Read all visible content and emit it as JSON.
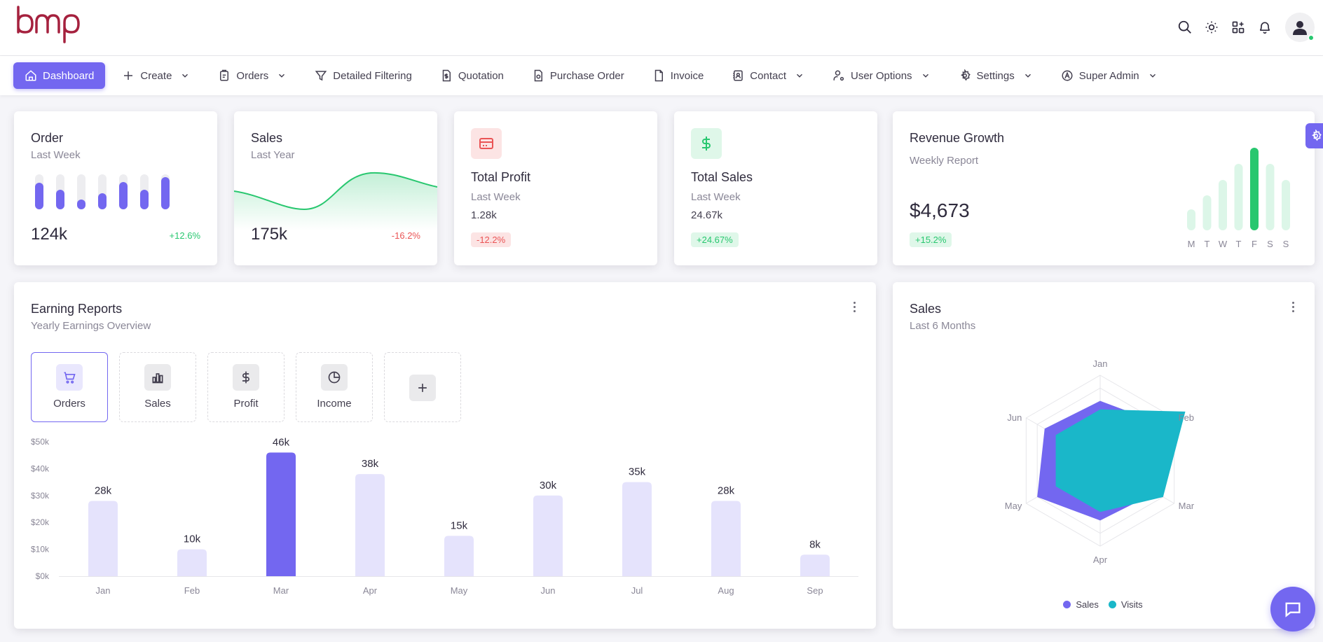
{
  "brand": {
    "logo_text": "bmp",
    "logo_color": "#a5213e"
  },
  "colors": {
    "primary": "#7367f0",
    "success": "#28c76f",
    "danger": "#ea5455",
    "visits": "#1ab7c9",
    "bar_light": "#e5e3fc"
  },
  "top_icons": [
    "search-icon",
    "sun-icon",
    "apps-icon",
    "bell-icon",
    "user-avatar-icon"
  ],
  "nav": [
    {
      "label": "Dashboard",
      "icon": "home-icon",
      "dropdown": false,
      "active": true
    },
    {
      "label": "Create",
      "icon": "plus-icon",
      "dropdown": true
    },
    {
      "label": "Orders",
      "icon": "clipboard-icon",
      "dropdown": true
    },
    {
      "label": "Detailed Filtering",
      "icon": "filter-icon",
      "dropdown": false
    },
    {
      "label": "Quotation",
      "icon": "dollar-file-icon",
      "dropdown": false
    },
    {
      "label": "Purchase Order",
      "icon": "file-settings-icon",
      "dropdown": false
    },
    {
      "label": "Invoice",
      "icon": "file-icon",
      "dropdown": false
    },
    {
      "label": "Contact",
      "icon": "address-book-icon",
      "dropdown": true
    },
    {
      "label": "User Options",
      "icon": "user-cog-icon",
      "dropdown": true
    },
    {
      "label": "Settings",
      "icon": "gear-icon",
      "dropdown": true
    },
    {
      "label": "Super Admin",
      "icon": "admin-circle-icon",
      "dropdown": true
    }
  ],
  "order_card": {
    "title": "Order",
    "subtitle": "Last Week",
    "value": "124k",
    "change": "+12.6%",
    "bar_levels": [
      0.75,
      0.55,
      0.28,
      0.45,
      0.78,
      0.55,
      0.92
    ]
  },
  "sales_card": {
    "title": "Sales",
    "subtitle": "Last Year",
    "value": "175k",
    "change": "-16.2%"
  },
  "profit_card": {
    "title": "Total Profit",
    "subtitle": "Last Week",
    "value": "1.28k",
    "change": "-12.2%",
    "icon": "credit-card-icon"
  },
  "total_sales_card": {
    "title": "Total Sales",
    "subtitle": "Last Week",
    "value": "24.67k",
    "change": "+24.67%",
    "icon": "dollar-icon"
  },
  "revenue_card": {
    "title": "Revenue Growth",
    "subtitle": "Weekly Report",
    "value": "$4,673",
    "change": "+15.2%",
    "days": [
      "M",
      "T",
      "W",
      "T",
      "F",
      "S",
      "S"
    ],
    "levels": [
      0.3,
      0.5,
      0.72,
      0.95,
      1.18,
      0.95,
      0.72
    ],
    "highlight_index": 4
  },
  "earning_reports": {
    "title": "Earning Reports",
    "subtitle": "Yearly Earnings Overview",
    "tiles": [
      {
        "label": "Orders",
        "icon": "cart-icon",
        "selected": true
      },
      {
        "label": "Sales",
        "icon": "bar-chart-icon",
        "selected": false
      },
      {
        "label": "Profit",
        "icon": "dollar-icon",
        "selected": false
      },
      {
        "label": "Income",
        "icon": "pie-chart-icon",
        "selected": false
      }
    ],
    "add_icon": "plus-icon"
  },
  "sales_radar": {
    "title": "Sales",
    "subtitle": "Last 6 Months",
    "legend": [
      {
        "label": "Sales",
        "color": "#7367f0"
      },
      {
        "label": "Visits",
        "color": "#1ab7c9"
      }
    ]
  },
  "chart_data": [
    {
      "type": "bar",
      "categories": [
        "Jan",
        "Feb",
        "Mar",
        "Apr",
        "May",
        "Jun",
        "Jul",
        "Aug",
        "Sep"
      ],
      "values": [
        28,
        10,
        46,
        38,
        15,
        30,
        35,
        28,
        8
      ],
      "value_labels": [
        "28k",
        "10k",
        "46k",
        "38k",
        "15k",
        "30k",
        "35k",
        "28k",
        "8k"
      ],
      "highlight_index": 2,
      "y_ticks": [
        "$0k",
        "$10k",
        "$20k",
        "$30k",
        "$40k",
        "$50k"
      ],
      "ylim": [
        0,
        50
      ],
      "colors": {
        "default": "#e5e3fc",
        "highlight": "#7367f0"
      }
    },
    {
      "type": "radar",
      "axes": [
        "Jan",
        "Feb",
        "Mar",
        "Apr",
        "May",
        "Jun"
      ],
      "series": [
        {
          "name": "Sales",
          "values": [
            70,
            85,
            75,
            70,
            85,
            75
          ],
          "color": "#7367f0"
        },
        {
          "name": "Visits",
          "values": [
            60,
            115,
            85,
            60,
            60,
            60
          ],
          "color": "#1ab7c9"
        }
      ],
      "rmax": 100
    }
  ]
}
